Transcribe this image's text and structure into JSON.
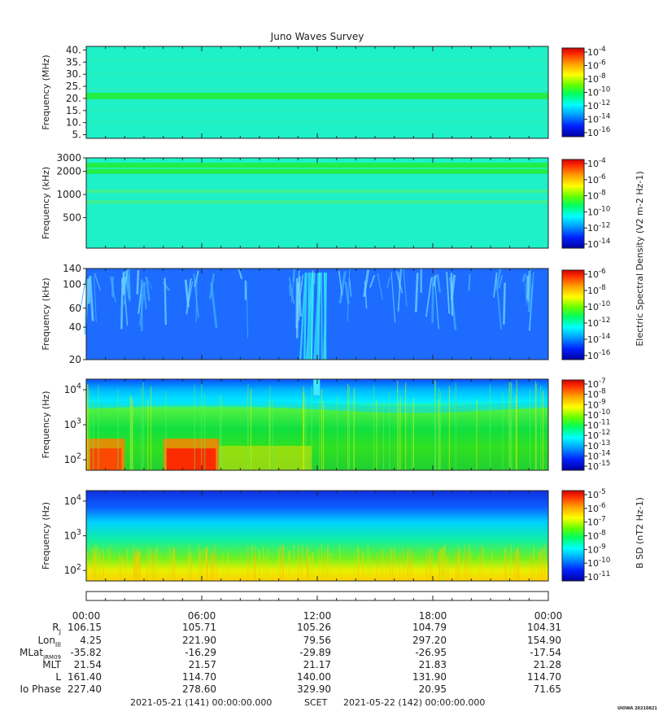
{
  "title": "Juno Waves Survey",
  "colors": {
    "background_field": "#1ef0c8",
    "line_green": "#22ee44",
    "noise_blue": "#1e6bff",
    "burst_red": "#ff2000",
    "colorbar_stops": [
      "#0000a0",
      "#0020ff",
      "#00a0ff",
      "#00ffff",
      "#00ff60",
      "#60ff00",
      "#ffff00",
      "#ffa000",
      "#ff3000",
      "#d00000"
    ]
  },
  "chart_data": [
    {
      "type": "heatmap",
      "ylabel": "Frequency (MHz)",
      "ylim": [
        3.5,
        41.5
      ],
      "y_scale": "linear",
      "yticks": [
        "40.",
        "35.",
        "30.",
        "25.",
        "20.",
        "15.",
        "10.",
        "5."
      ],
      "ytick_values": [
        40,
        35,
        30,
        25,
        20,
        15,
        10,
        5
      ],
      "bands_mhz": [
        21
      ],
      "colorbar": {
        "labels": [
          "10-4",
          "10-6",
          "10-8",
          "10-10",
          "10-12",
          "10-14",
          "10-16"
        ],
        "exponents": [
          -4,
          -6,
          -8,
          -10,
          -12,
          -14,
          -16
        ],
        "base": "10"
      }
    },
    {
      "type": "heatmap",
      "ylabel": "Frequency (kHz)",
      "ylim": [
        200,
        3000
      ],
      "y_scale": "log",
      "yticks": [
        "3000",
        "2000",
        "1000",
        "500"
      ],
      "ytick_values": [
        3000,
        2000,
        1000,
        500
      ],
      "bands_khz": [
        2400,
        2000,
        1100,
        800
      ],
      "colorbar": {
        "labels": [
          "10-4",
          "10-6",
          "10-8",
          "10-10",
          "10-12",
          "10-14"
        ],
        "exponents": [
          -4,
          -6,
          -8,
          -10,
          -12,
          -14
        ],
        "base": "10"
      }
    },
    {
      "type": "heatmap",
      "ylabel": "Frequency (kHz)",
      "ylim": [
        20,
        140
      ],
      "y_scale": "log",
      "yticks": [
        "140",
        "100",
        "60",
        "40",
        "20"
      ],
      "ytick_values": [
        140,
        100,
        60,
        40,
        20
      ],
      "colorbar": {
        "labels": [
          "10-6",
          "10-8",
          "10-10",
          "10-12",
          "10-14",
          "10-16"
        ],
        "exponents": [
          -6,
          -8,
          -10,
          -12,
          -14,
          -16
        ],
        "base": "10"
      }
    },
    {
      "type": "heatmap",
      "ylabel": "Frequency (Hz)",
      "ylim": [
        50,
        20000
      ],
      "y_scale": "log",
      "yticks": [
        "104",
        "103",
        "102"
      ],
      "ytick_values": [
        10000,
        1000,
        100
      ],
      "colorbar": {
        "labels": [
          "10-7",
          "10-8",
          "10-9",
          "10-10",
          "10-11",
          "10-12",
          "10-13",
          "10-14",
          "10-15"
        ],
        "exponents": [
          -7,
          -8,
          -9,
          -10,
          -11,
          -12,
          -13,
          -14,
          -15
        ],
        "base": "10"
      }
    },
    {
      "type": "heatmap",
      "ylabel": "Frequency (Hz)",
      "ylim": [
        50,
        20000
      ],
      "y_scale": "log",
      "yticks": [
        "104",
        "103",
        "102"
      ],
      "ytick_values": [
        10000,
        1000,
        100
      ],
      "colorbar": {
        "labels": [
          "10-5",
          "10-6",
          "10-7",
          "10-8",
          "10-9",
          "10-10",
          "10-11"
        ],
        "exponents": [
          -5,
          -6,
          -7,
          -8,
          -9,
          -10,
          -11
        ],
        "base": "10"
      }
    }
  ],
  "colorbar_titles": {
    "electric": "Electric Spectral Density (V2 m-2 Hz-1)",
    "magnetic": "B SD (nT2 Hz-1)"
  },
  "time_axis": {
    "ticks": [
      "00:00",
      "06:00",
      "12:00",
      "18:00",
      "00:00"
    ],
    "tick_hours": [
      0,
      6,
      12,
      18,
      24
    ]
  },
  "ephemeris": {
    "rows": [
      {
        "label": "RJ",
        "values": [
          "106.15",
          "105.71",
          "105.26",
          "104.79",
          "104.31"
        ]
      },
      {
        "label": "LonIII",
        "values": [
          "4.25",
          "221.90",
          "79.56",
          "297.20",
          "154.90"
        ]
      },
      {
        "label": "MLatJRM09",
        "values": [
          "-35.82",
          "-16.29",
          "-29.89",
          "-26.95",
          "-17.54"
        ]
      },
      {
        "label": "MLT",
        "values": [
          "21.54",
          "21.57",
          "21.17",
          "21.83",
          "21.28"
        ]
      },
      {
        "label": "L",
        "values": [
          "161.40",
          "114.70",
          "140.00",
          "131.90",
          "114.70"
        ]
      },
      {
        "label": "Io Phase",
        "values": [
          "227.40",
          "278.60",
          "329.90",
          "20.95",
          "71.65"
        ]
      }
    ]
  },
  "footer": {
    "start": "2021-05-21 (141) 00:00:00.000",
    "scet": "SCET",
    "end": "2021-05-22 (142) 00:00:00.000",
    "credit": "UIOWA 20210821"
  }
}
